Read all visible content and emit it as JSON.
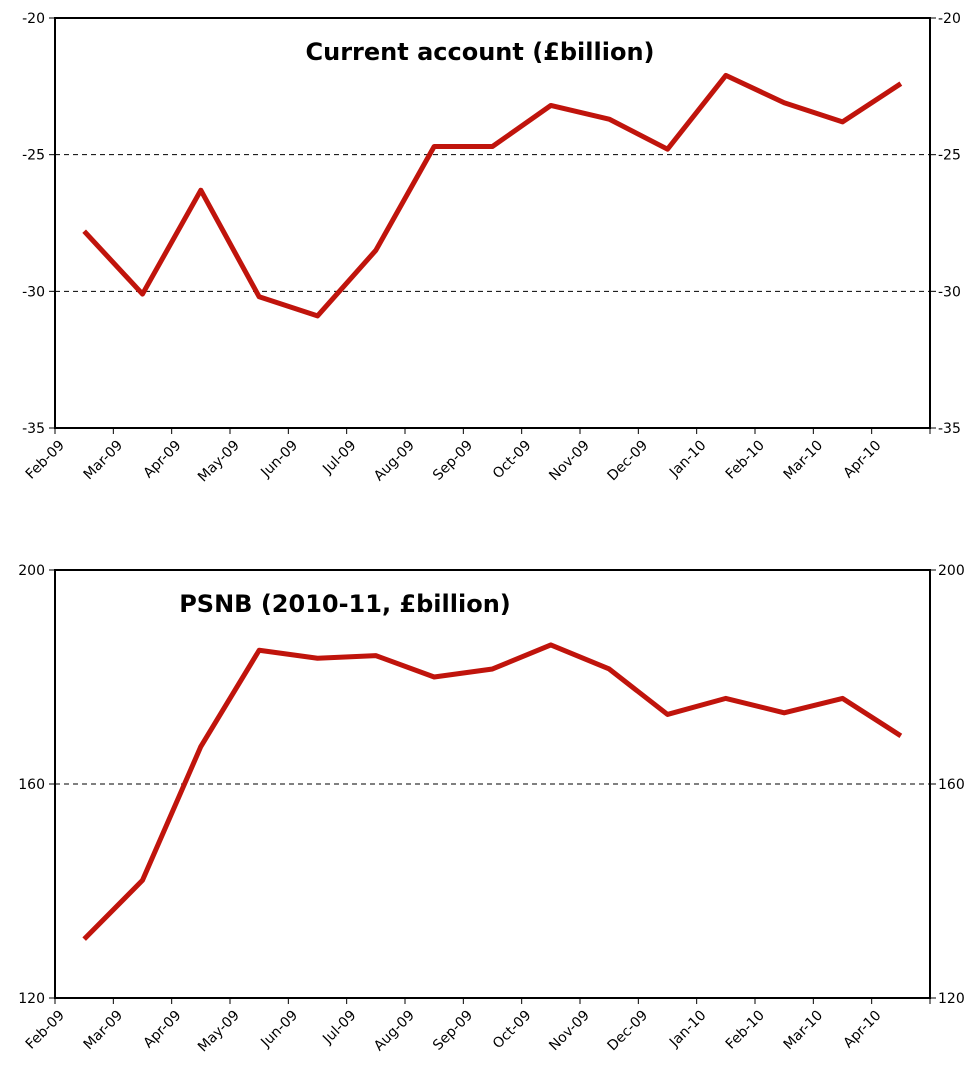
{
  "chart_data": [
    {
      "type": "line",
      "title": "Current account (£billion)",
      "categories": [
        "Feb-09",
        "Mar-09",
        "Apr-09",
        "May-09",
        "Jun-09",
        "Jul-09",
        "Aug-09",
        "Sep-09",
        "Oct-09",
        "Nov-09",
        "Dec-09",
        "Jan-10",
        "Feb-10",
        "Mar-10",
        "Apr-10"
      ],
      "values": [
        -27.8,
        -30.1,
        -26.3,
        -30.2,
        -30.9,
        -28.5,
        -24.7,
        -24.7,
        -23.2,
        -23.7,
        -24.8,
        -22.1,
        -23.1,
        -23.8,
        -22.4
      ],
      "color": "#c0140c",
      "ylim": [
        -35,
        -20
      ],
      "yticks": [
        -35,
        -30,
        -25,
        -20
      ],
      "grid": true
    },
    {
      "type": "line",
      "title": "PSNB (2010-11, £billion)",
      "categories": [
        "Feb-09",
        "Mar-09",
        "Apr-09",
        "May-09",
        "Jun-09",
        "Jul-09",
        "Aug-09",
        "Sep-09",
        "Oct-09",
        "Nov-09",
        "Dec-09",
        "Jan-10",
        "Feb-10",
        "Mar-10",
        "Apr-10"
      ],
      "values": [
        131,
        142,
        167,
        185,
        183.5,
        184,
        180,
        181.5,
        186,
        181.5,
        173,
        176,
        173.3,
        176,
        169
      ],
      "color": "#c0140c",
      "ylim": [
        120,
        200
      ],
      "yticks": [
        120,
        160,
        200
      ],
      "grid": true
    }
  ]
}
